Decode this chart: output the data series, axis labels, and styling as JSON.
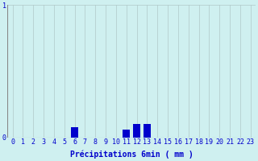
{
  "xlabel": "Précipitations 6min ( mm )",
  "hours": [
    0,
    1,
    2,
    3,
    4,
    5,
    6,
    7,
    8,
    9,
    10,
    11,
    12,
    13,
    14,
    15,
    16,
    17,
    18,
    19,
    20,
    21,
    22,
    23
  ],
  "values": [
    0,
    0,
    0,
    0,
    0,
    0,
    0.08,
    0,
    0,
    0,
    0,
    0.06,
    0.1,
    0.1,
    0,
    0,
    0,
    0,
    0,
    0,
    0,
    0,
    0,
    0
  ],
  "bar_color": "#0000cc",
  "background_color": "#cff0f0",
  "grid_color": "#b0c8c8",
  "text_color": "#0000cc",
  "ylim_min": 0,
  "ylim_max": 1,
  "ytick_labels": [
    "0",
    "1"
  ],
  "ytick_vals": [
    0,
    1
  ],
  "bar_width": 0.7,
  "xlabel_fontsize": 7,
  "tick_fontsize": 6
}
